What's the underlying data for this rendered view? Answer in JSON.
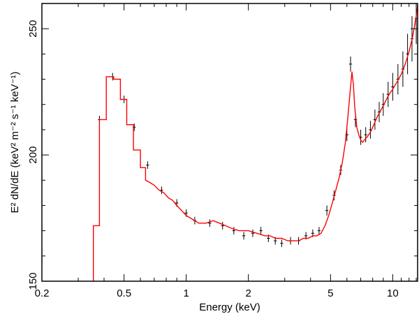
{
  "chart_data": {
    "type": "line",
    "xlabel": "Energy (keV)",
    "ylabel": "E² dN/dE  (keV² m⁻² s⁻¹ keV⁻¹)",
    "x_scale": "log",
    "xlim": [
      0.2,
      13.2
    ],
    "ylim": [
      150,
      260
    ],
    "x_ticks": [
      0.2,
      0.5,
      1,
      2,
      5,
      10
    ],
    "x_tick_labels": [
      "0.2",
      "0.5",
      "1",
      "2",
      "5",
      "10"
    ],
    "y_ticks": [
      150,
      200,
      250
    ],
    "y_tick_labels": [
      "150",
      "200",
      "250"
    ],
    "grid": false,
    "legend": "none",
    "colors": {
      "model": "#ff0000",
      "data": "#000000",
      "axes": "#000000"
    },
    "series": [
      {
        "kind": "model-step",
        "color": "#ff0000",
        "points": [
          [
            0.355,
            150
          ],
          [
            0.355,
            172
          ],
          [
            0.38,
            172
          ],
          [
            0.38,
            214
          ],
          [
            0.41,
            214
          ],
          [
            0.41,
            231
          ],
          [
            0.445,
            231
          ],
          [
            0.445,
            230
          ],
          [
            0.48,
            230
          ],
          [
            0.48,
            222
          ],
          [
            0.515,
            222
          ],
          [
            0.515,
            212
          ],
          [
            0.555,
            212
          ],
          [
            0.555,
            202
          ],
          [
            0.6,
            202
          ],
          [
            0.6,
            195
          ],
          [
            0.635,
            195
          ],
          [
            0.635,
            190
          ],
          [
            0.67,
            189
          ],
          [
            0.7,
            188
          ],
          [
            0.74,
            186
          ],
          [
            0.78,
            185
          ],
          [
            0.82,
            183
          ],
          [
            0.86,
            182
          ],
          [
            0.9,
            180
          ],
          [
            0.95,
            178
          ],
          [
            1.0,
            176
          ],
          [
            1.05,
            175
          ],
          [
            1.1,
            174
          ],
          [
            1.15,
            173
          ],
          [
            1.25,
            173
          ],
          [
            1.35,
            174
          ],
          [
            1.45,
            173
          ],
          [
            1.55,
            172
          ],
          [
            1.65,
            171
          ],
          [
            1.8,
            170
          ],
          [
            2.0,
            170
          ],
          [
            2.2,
            169
          ],
          [
            2.4,
            168
          ],
          [
            2.55,
            168
          ],
          [
            2.7,
            167
          ],
          [
            2.9,
            167
          ],
          [
            3.1,
            166
          ],
          [
            3.3,
            166
          ],
          [
            3.5,
            166
          ],
          [
            3.7,
            167
          ],
          [
            3.9,
            167
          ],
          [
            4.1,
            168
          ],
          [
            4.3,
            168
          ],
          [
            4.5,
            169
          ],
          [
            4.7,
            172
          ],
          [
            4.9,
            176
          ],
          [
            5.1,
            181
          ],
          [
            5.3,
            186
          ],
          [
            5.5,
            191
          ],
          [
            5.7,
            197
          ],
          [
            5.9,
            205
          ],
          [
            6.05,
            214
          ],
          [
            6.2,
            224
          ],
          [
            6.35,
            233
          ],
          [
            6.45,
            228
          ],
          [
            6.55,
            219
          ],
          [
            6.7,
            211
          ],
          [
            6.85,
            208
          ],
          [
            7.0,
            206
          ],
          [
            7.15,
            205
          ],
          [
            7.3,
            206
          ],
          [
            7.5,
            207
          ],
          [
            7.8,
            209
          ],
          [
            8.1,
            212
          ],
          [
            8.4,
            215
          ],
          [
            8.8,
            218
          ],
          [
            9.2,
            221
          ],
          [
            9.6,
            224
          ],
          [
            10.0,
            226
          ],
          [
            10.5,
            229
          ],
          [
            11.0,
            232
          ],
          [
            11.5,
            236
          ],
          [
            12.0,
            241
          ],
          [
            12.5,
            247
          ],
          [
            13.0,
            255
          ],
          [
            13.2,
            259
          ]
        ]
      },
      {
        "kind": "data-crosses",
        "color": "#000000",
        "points": [
          [
            0.38,
            214,
            1.5
          ],
          [
            0.44,
            231,
            1.5
          ],
          [
            0.5,
            222,
            1.5
          ],
          [
            0.56,
            211,
            1.5
          ],
          [
            0.65,
            196,
            1.5
          ],
          [
            0.76,
            186,
            1.5
          ],
          [
            0.9,
            181,
            1.5
          ],
          [
            1.0,
            177,
            1.5
          ],
          [
            1.1,
            174,
            1.5
          ],
          [
            1.3,
            173,
            1.5
          ],
          [
            1.5,
            172,
            1.5
          ],
          [
            1.7,
            170,
            1.5
          ],
          [
            1.9,
            168,
            1.5
          ],
          [
            2.1,
            169,
            1.5
          ],
          [
            2.3,
            170,
            1.5
          ],
          [
            2.5,
            167,
            1.5
          ],
          [
            2.7,
            166,
            1.5
          ],
          [
            2.9,
            165,
            1.5
          ],
          [
            3.2,
            166,
            1.5
          ],
          [
            3.5,
            166,
            1.5
          ],
          [
            3.8,
            168,
            1.5
          ],
          [
            4.1,
            169,
            1.5
          ],
          [
            4.4,
            170,
            1.5
          ],
          [
            4.8,
            178,
            2
          ],
          [
            5.2,
            184,
            2
          ],
          [
            5.6,
            194,
            2
          ],
          [
            6.0,
            208,
            2.5
          ],
          [
            6.25,
            236,
            3
          ],
          [
            6.6,
            214,
            3
          ],
          [
            7.0,
            207,
            3
          ],
          [
            7.4,
            208,
            3
          ],
          [
            7.8,
            210,
            3.5
          ],
          [
            8.2,
            214,
            4
          ],
          [
            8.6,
            217,
            4
          ],
          [
            9.0,
            220,
            4.5
          ],
          [
            9.5,
            224,
            5
          ],
          [
            10.0,
            227,
            5.5
          ],
          [
            10.6,
            230,
            6
          ],
          [
            11.2,
            234,
            7
          ],
          [
            11.8,
            240,
            8
          ],
          [
            12.4,
            246,
            9
          ],
          [
            13.0,
            254,
            10
          ]
        ]
      }
    ]
  }
}
